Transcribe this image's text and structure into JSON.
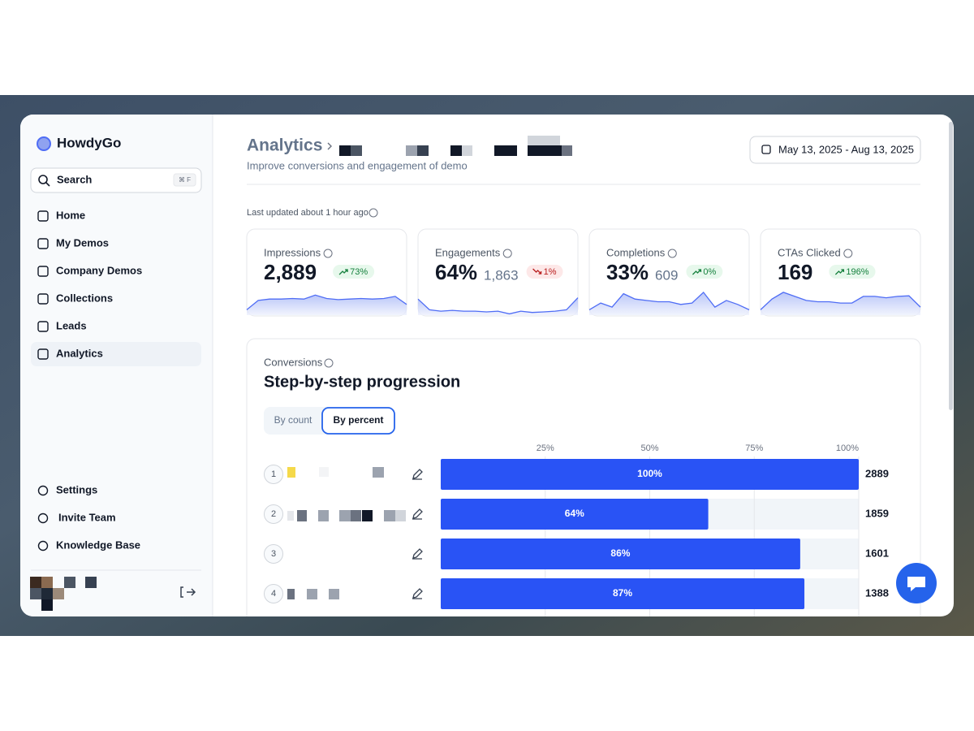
{
  "sidebar": {
    "brand": "HowdyGo",
    "search": "Search",
    "shortcut": "⌘ F",
    "nav": [
      "Home",
      "My Demos",
      "Company Demos",
      "Collections",
      "Leads",
      "Analytics"
    ],
    "active": 5,
    "footer_nav": [
      "Settings",
      "Invite Team",
      "Knowledge Base"
    ]
  },
  "header": {
    "title": "Analytics",
    "subtitle": "Improve conversions and engagement of demo",
    "date_range": "May 13, 2025 - Aug 13, 2025"
  },
  "last_updated": "Last updated about 1 hour ago",
  "cards": [
    {
      "label": "Impressions",
      "value": "2,889",
      "change": "73%",
      "direction": "up",
      "trend": [
        20,
        55,
        60,
        60,
        62,
        60,
        75,
        62,
        58,
        60,
        62,
        60,
        62,
        70,
        40
      ]
    },
    {
      "label": "Engagements",
      "value": "64%",
      "secondary": "1,863",
      "change": "1%",
      "direction": "down",
      "trend": [
        60,
        20,
        15,
        18,
        15,
        15,
        12,
        15,
        5,
        15,
        10,
        12,
        15,
        20,
        65
      ]
    },
    {
      "label": "Completions",
      "value": "33%",
      "secondary": "609",
      "change": "0%",
      "direction": "up",
      "trend": [
        20,
        45,
        30,
        80,
        60,
        55,
        50,
        50,
        40,
        45,
        85,
        30,
        55,
        40,
        20
      ]
    },
    {
      "label": "CTAs Clicked",
      "value": "169",
      "change": "196%",
      "direction": "up",
      "trend": [
        20,
        60,
        85,
        70,
        55,
        50,
        50,
        45,
        45,
        70,
        70,
        65,
        70,
        72,
        30
      ]
    }
  ],
  "chart_data": {
    "type": "bar",
    "section": "Conversions",
    "title": "Step-by-step progression",
    "view_options": [
      "By count",
      "By percent"
    ],
    "selected_view": 1,
    "categories": [
      "1",
      "2",
      "3",
      "4"
    ],
    "values": [
      100,
      64,
      86,
      87
    ],
    "value_labels": [
      "100%",
      "64%",
      "86%",
      "87%"
    ],
    "counts": [
      2889,
      1859,
      1601,
      1388
    ],
    "xlim": [
      0,
      100
    ],
    "xticks": [
      {
        "value": 25,
        "label": "25%"
      },
      {
        "value": 50,
        "label": "50%"
      },
      {
        "value": 75,
        "label": "75%"
      },
      {
        "value": 100,
        "label": "100%"
      }
    ],
    "color": "#2953f5",
    "grid": true
  }
}
